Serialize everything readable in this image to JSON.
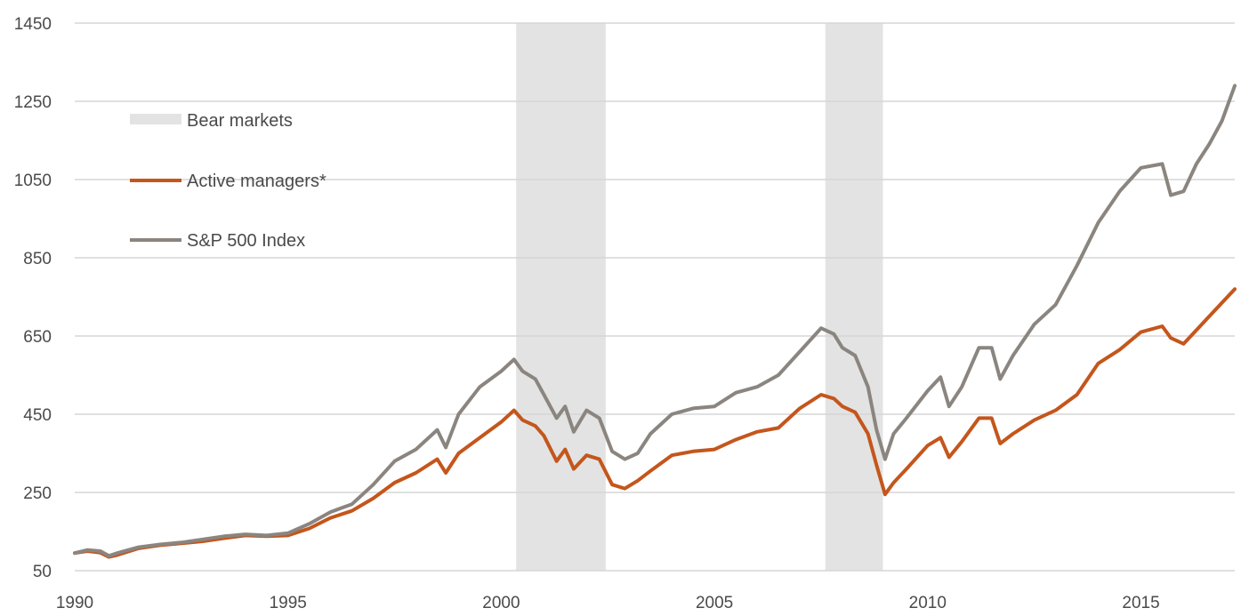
{
  "chart_data": {
    "type": "line",
    "title": "",
    "xlabel": "",
    "ylabel": "",
    "xlim": [
      1990.0,
      2017.2
    ],
    "ylim": [
      50,
      1450
    ],
    "x_ticks": [
      "1990",
      "1995",
      "2000",
      "2005",
      "2010",
      "2015"
    ],
    "y_ticks": [
      "50",
      "250",
      "450",
      "650",
      "850",
      "1050",
      "1250",
      "1450"
    ],
    "grid": true,
    "legend_position": "top-left",
    "shaded_regions": [
      {
        "name": "Bear markets",
        "start": 2000.35,
        "end": 2002.45,
        "color": "#e3e3e3"
      },
      {
        "name": "Bear markets",
        "start": 2007.6,
        "end": 2008.95,
        "color": "#e3e3e3"
      }
    ],
    "legend": [
      {
        "label": "Bear markets",
        "kind": "band",
        "color": "#e3e3e3"
      },
      {
        "label": "Active managers*",
        "kind": "line",
        "color": "#c4561c"
      },
      {
        "label": "S&P 500 Index",
        "kind": "line",
        "color": "#8b8580"
      }
    ],
    "series": [
      {
        "name": "Active managers*",
        "color": "#c4561c",
        "points": [
          [
            1990.0,
            95
          ],
          [
            1990.3,
            100
          ],
          [
            1990.6,
            96
          ],
          [
            1990.8,
            85
          ],
          [
            1991.0,
            90
          ],
          [
            1991.5,
            107
          ],
          [
            1992.0,
            115
          ],
          [
            1992.5,
            120
          ],
          [
            1993.0,
            125
          ],
          [
            1993.5,
            133
          ],
          [
            1994.0,
            140
          ],
          [
            1994.5,
            138
          ],
          [
            1995.0,
            140
          ],
          [
            1995.5,
            158
          ],
          [
            1996.0,
            185
          ],
          [
            1996.5,
            203
          ],
          [
            1997.0,
            235
          ],
          [
            1997.5,
            275
          ],
          [
            1998.0,
            300
          ],
          [
            1998.5,
            335
          ],
          [
            1998.7,
            300
          ],
          [
            1999.0,
            350
          ],
          [
            1999.5,
            390
          ],
          [
            2000.0,
            430
          ],
          [
            2000.3,
            460
          ],
          [
            2000.5,
            435
          ],
          [
            2000.8,
            420
          ],
          [
            2001.0,
            395
          ],
          [
            2001.3,
            330
          ],
          [
            2001.5,
            360
          ],
          [
            2001.7,
            310
          ],
          [
            2002.0,
            345
          ],
          [
            2002.3,
            335
          ],
          [
            2002.6,
            270
          ],
          [
            2002.9,
            260
          ],
          [
            2003.2,
            280
          ],
          [
            2003.5,
            305
          ],
          [
            2004.0,
            345
          ],
          [
            2004.5,
            355
          ],
          [
            2005.0,
            360
          ],
          [
            2005.5,
            385
          ],
          [
            2006.0,
            405
          ],
          [
            2006.5,
            415
          ],
          [
            2007.0,
            465
          ],
          [
            2007.5,
            500
          ],
          [
            2007.8,
            490
          ],
          [
            2008.0,
            470
          ],
          [
            2008.3,
            455
          ],
          [
            2008.6,
            400
          ],
          [
            2008.8,
            320
          ],
          [
            2009.0,
            245
          ],
          [
            2009.2,
            275
          ],
          [
            2009.5,
            310
          ],
          [
            2010.0,
            370
          ],
          [
            2010.3,
            390
          ],
          [
            2010.5,
            340
          ],
          [
            2010.8,
            380
          ],
          [
            2011.2,
            440
          ],
          [
            2011.5,
            440
          ],
          [
            2011.7,
            375
          ],
          [
            2012.0,
            400
          ],
          [
            2012.5,
            435
          ],
          [
            2013.0,
            460
          ],
          [
            2013.5,
            500
          ],
          [
            2014.0,
            580
          ],
          [
            2014.5,
            615
          ],
          [
            2015.0,
            660
          ],
          [
            2015.5,
            675
          ],
          [
            2015.7,
            645
          ],
          [
            2016.0,
            630
          ],
          [
            2016.3,
            665
          ],
          [
            2016.6,
            700
          ],
          [
            2016.9,
            735
          ],
          [
            2017.2,
            770
          ]
        ]
      },
      {
        "name": "S&P 500 Index",
        "color": "#8b8580",
        "points": [
          [
            1990.0,
            95
          ],
          [
            1990.3,
            103
          ],
          [
            1990.6,
            100
          ],
          [
            1990.8,
            88
          ],
          [
            1991.0,
            95
          ],
          [
            1991.5,
            110
          ],
          [
            1992.0,
            117
          ],
          [
            1992.5,
            122
          ],
          [
            1993.0,
            130
          ],
          [
            1993.5,
            138
          ],
          [
            1994.0,
            143
          ],
          [
            1994.5,
            140
          ],
          [
            1995.0,
            146
          ],
          [
            1995.5,
            170
          ],
          [
            1996.0,
            200
          ],
          [
            1996.5,
            220
          ],
          [
            1997.0,
            270
          ],
          [
            1997.5,
            330
          ],
          [
            1998.0,
            360
          ],
          [
            1998.5,
            410
          ],
          [
            1998.7,
            365
          ],
          [
            1999.0,
            450
          ],
          [
            1999.5,
            520
          ],
          [
            2000.0,
            560
          ],
          [
            2000.3,
            590
          ],
          [
            2000.5,
            560
          ],
          [
            2000.8,
            540
          ],
          [
            2001.0,
            500
          ],
          [
            2001.3,
            440
          ],
          [
            2001.5,
            470
          ],
          [
            2001.7,
            405
          ],
          [
            2002.0,
            460
          ],
          [
            2002.3,
            440
          ],
          [
            2002.6,
            355
          ],
          [
            2002.9,
            335
          ],
          [
            2003.2,
            350
          ],
          [
            2003.5,
            400
          ],
          [
            2004.0,
            450
          ],
          [
            2004.5,
            465
          ],
          [
            2005.0,
            470
          ],
          [
            2005.5,
            505
          ],
          [
            2006.0,
            520
          ],
          [
            2006.5,
            550
          ],
          [
            2007.0,
            610
          ],
          [
            2007.5,
            670
          ],
          [
            2007.8,
            655
          ],
          [
            2008.0,
            620
          ],
          [
            2008.3,
            600
          ],
          [
            2008.6,
            520
          ],
          [
            2008.8,
            410
          ],
          [
            2009.0,
            335
          ],
          [
            2009.2,
            400
          ],
          [
            2009.5,
            440
          ],
          [
            2010.0,
            510
          ],
          [
            2010.3,
            545
          ],
          [
            2010.5,
            470
          ],
          [
            2010.8,
            520
          ],
          [
            2011.2,
            620
          ],
          [
            2011.5,
            620
          ],
          [
            2011.7,
            540
          ],
          [
            2012.0,
            600
          ],
          [
            2012.5,
            680
          ],
          [
            2013.0,
            730
          ],
          [
            2013.5,
            830
          ],
          [
            2014.0,
            940
          ],
          [
            2014.5,
            1020
          ],
          [
            2015.0,
            1080
          ],
          [
            2015.5,
            1090
          ],
          [
            2015.7,
            1010
          ],
          [
            2016.0,
            1020
          ],
          [
            2016.3,
            1090
          ],
          [
            2016.6,
            1140
          ],
          [
            2016.9,
            1200
          ],
          [
            2017.2,
            1290
          ]
        ]
      }
    ]
  }
}
